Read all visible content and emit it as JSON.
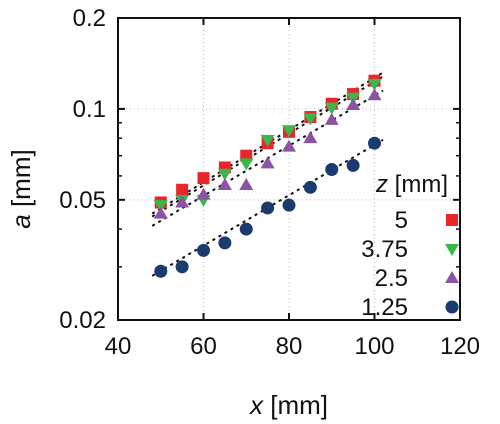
{
  "chart_data": {
    "type": "scatter",
    "title": "",
    "xlabel": {
      "var": "x",
      "unit": " [mm]"
    },
    "ylabel": {
      "var": "a",
      "unit": " [mm]"
    },
    "xlim": [
      40,
      120
    ],
    "ylim": [
      0.02,
      0.2
    ],
    "yscale": "log",
    "xticks": [
      40,
      60,
      80,
      100,
      120
    ],
    "xtick_labels": [
      "40",
      "60",
      "80",
      "100",
      "120"
    ],
    "yticks": [
      0.02,
      0.05,
      0.1,
      0.2
    ],
    "ytick_labels": [
      "0.02",
      "0.05",
      "0.1",
      "0.2"
    ],
    "grid": true,
    "legend": {
      "title_var": "z",
      "title_unit": " [mm]",
      "position": "right"
    },
    "x": [
      50,
      55,
      60,
      65,
      70,
      75,
      80,
      85,
      90,
      95,
      100
    ],
    "series": [
      {
        "name": "5",
        "marker": "square",
        "color": "#e8262b",
        "values": [
          0.049,
          0.054,
          0.059,
          0.064,
          0.07,
          0.077,
          0.084,
          0.094,
          0.104,
          0.112,
          0.124
        ]
      },
      {
        "name": "3.75",
        "marker": "triangle-down",
        "color": "#3cb54a",
        "values": [
          0.048,
          0.05,
          0.05,
          0.061,
          0.066,
          0.079,
          0.085,
          0.093,
          0.101,
          0.109,
          0.121
        ]
      },
      {
        "name": "2.5",
        "marker": "triangle-up",
        "color": "#8c52a3",
        "values": [
          0.045,
          0.049,
          0.052,
          0.056,
          0.056,
          0.066,
          0.075,
          0.08,
          0.092,
          0.103,
          0.111
        ]
      },
      {
        "name": "1.25",
        "marker": "circle",
        "color": "#1b3a6e",
        "values": [
          0.029,
          0.03,
          0.034,
          0.036,
          0.04,
          0.047,
          0.048,
          0.055,
          0.063,
          0.065,
          0.077
        ]
      }
    ],
    "fit_lines": [
      {
        "x": [
          48,
          102
        ],
        "y": [
          0.045,
          0.132
        ]
      },
      {
        "x": [
          48,
          102
        ],
        "y": [
          0.044,
          0.128
        ]
      },
      {
        "x": [
          48,
          102
        ],
        "y": [
          0.041,
          0.115
        ]
      },
      {
        "x": [
          48,
          102
        ],
        "y": [
          0.028,
          0.079
        ]
      }
    ]
  }
}
